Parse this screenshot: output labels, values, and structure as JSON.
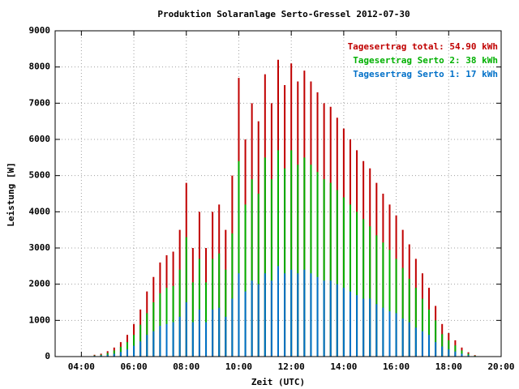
{
  "chart_data": {
    "type": "impulse",
    "title": "Produktion Solaranlage Serto-Gressel 2012-07-30",
    "x_label": "Zeit (UTC)",
    "y_label": "Leistung [W]",
    "x": [
      270,
      285,
      300,
      315,
      330,
      345,
      360,
      375,
      390,
      405,
      420,
      435,
      450,
      465,
      480,
      495,
      510,
      525,
      540,
      555,
      570,
      585,
      600,
      615,
      630,
      645,
      660,
      675,
      690,
      705,
      720,
      735,
      750,
      765,
      780,
      795,
      810,
      825,
      840,
      855,
      870,
      885,
      900,
      915,
      930,
      945,
      960,
      975,
      990,
      1005,
      1020,
      1035,
      1050,
      1065,
      1080,
      1095,
      1110,
      1125,
      1140
    ],
    "series": [
      {
        "name": "Tagesertrag total: 54.90 kWh",
        "color": "#c00000",
        "values": [
          50,
          80,
          150,
          250,
          400,
          600,
          900,
          1300,
          1800,
          2200,
          2600,
          2800,
          2900,
          3500,
          4800,
          3000,
          4000,
          3000,
          4000,
          4200,
          3500,
          5000,
          7700,
          6000,
          7000,
          6500,
          7800,
          7000,
          8200,
          7500,
          8100,
          7600,
          7900,
          7600,
          7300,
          7000,
          6900,
          6600,
          6300,
          6000,
          5700,
          5400,
          5200,
          4800,
          4500,
          4200,
          3900,
          3500,
          3100,
          2700,
          2300,
          1900,
          1400,
          900,
          650,
          450,
          250,
          120,
          40
        ]
      },
      {
        "name": "Tagesertrag Serto 2: 38 kWh",
        "color": "#00b000",
        "values": [
          30,
          50,
          100,
          170,
          270,
          400,
          600,
          880,
          1200,
          1500,
          1750,
          1900,
          1950,
          2400,
          3300,
          2050,
          2700,
          2050,
          2700,
          2850,
          2400,
          3400,
          5400,
          4200,
          4900,
          4500,
          5500,
          4900,
          5700,
          5200,
          5700,
          5300,
          5500,
          5300,
          5100,
          4900,
          4800,
          4600,
          4400,
          4200,
          4000,
          3800,
          3600,
          3350,
          3150,
          2950,
          2700,
          2450,
          2150,
          1900,
          1600,
          1300,
          1000,
          620,
          450,
          310,
          170,
          80,
          25
        ]
      },
      {
        "name": "Tagesertrag Serto 1: 17 kWh",
        "color": "#0070c8",
        "values": [
          20,
          30,
          50,
          80,
          130,
          200,
          300,
          420,
          600,
          700,
          850,
          900,
          950,
          1100,
          1500,
          950,
          1300,
          950,
          1300,
          1350,
          1100,
          1600,
          2300,
          1800,
          2100,
          2000,
          2300,
          2100,
          2500,
          2300,
          2400,
          2300,
          2400,
          2300,
          2200,
          2100,
          2100,
          2000,
          1900,
          1800,
          1700,
          1600,
          1600,
          1450,
          1350,
          1250,
          1200,
          1050,
          950,
          800,
          700,
          600,
          400,
          280,
          200,
          140,
          80,
          40,
          15
        ]
      }
    ],
    "xlim": [
      {
        "value": 180,
        "label": "03:00"
      },
      {
        "value": 1200,
        "label": "20:00"
      }
    ],
    "xticks": [
      {
        "value": 240,
        "label": "04:00"
      },
      {
        "value": 360,
        "label": "06:00"
      },
      {
        "value": 480,
        "label": "08:00"
      },
      {
        "value": 600,
        "label": "10:00"
      },
      {
        "value": 720,
        "label": "12:00"
      },
      {
        "value": 840,
        "label": "14:00"
      },
      {
        "value": 960,
        "label": "16:00"
      },
      {
        "value": 1080,
        "label": "18:00"
      },
      {
        "value": 1200,
        "label": "20:00"
      }
    ],
    "ylim": [
      0,
      9000
    ],
    "yticks": [
      0,
      1000,
      2000,
      3000,
      4000,
      5000,
      6000,
      7000,
      8000,
      9000
    ],
    "grid": true,
    "legend": "top-right"
  }
}
